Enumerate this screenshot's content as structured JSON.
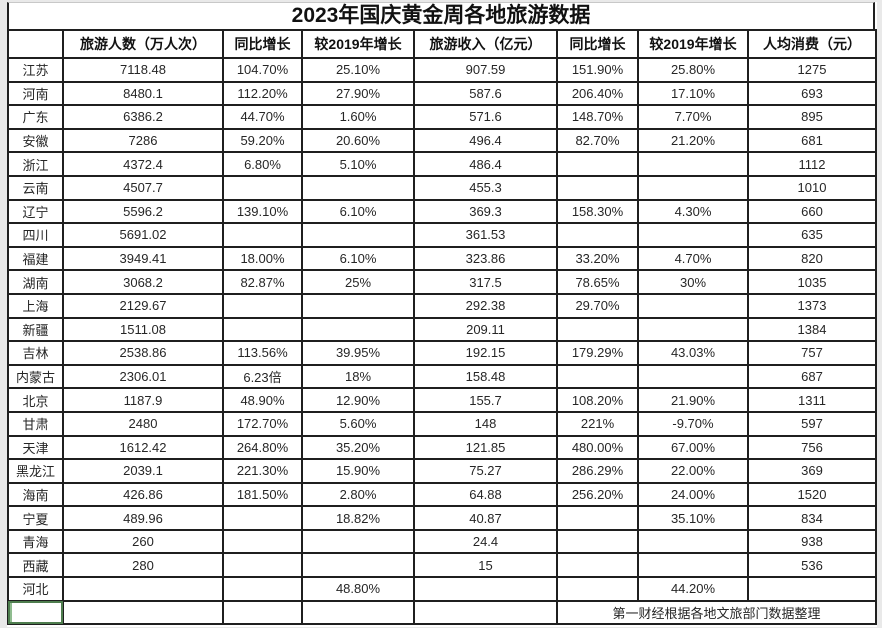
{
  "title": "2023年国庆黄金周各地旅游数据",
  "table": {
    "columns": [
      "",
      "旅游人数（万人次）",
      "同比增长",
      "较2019年增长",
      "旅游收入（亿元）",
      "同比增长",
      "较2019年增长",
      "人均消费（元）"
    ],
    "rows": [
      {
        "province": "江苏",
        "tourists": "7118.48",
        "tourists_yoy": "104.70%",
        "tourists_vs2019": "25.10%",
        "revenue": "907.59",
        "revenue_yoy": "151.90%",
        "revenue_vs2019": "25.80%",
        "per_capita": "1275"
      },
      {
        "province": "河南",
        "tourists": "8480.1",
        "tourists_yoy": "112.20%",
        "tourists_vs2019": "27.90%",
        "revenue": "587.6",
        "revenue_yoy": "206.40%",
        "revenue_vs2019": "17.10%",
        "per_capita": "693"
      },
      {
        "province": "广东",
        "tourists": "6386.2",
        "tourists_yoy": "44.70%",
        "tourists_vs2019": "1.60%",
        "revenue": "571.6",
        "revenue_yoy": "148.70%",
        "revenue_vs2019": "7.70%",
        "per_capita": "895"
      },
      {
        "province": "安徽",
        "tourists": "7286",
        "tourists_yoy": "59.20%",
        "tourists_vs2019": "20.60%",
        "revenue": "496.4",
        "revenue_yoy": "82.70%",
        "revenue_vs2019": "21.20%",
        "per_capita": "681"
      },
      {
        "province": "浙江",
        "tourists": "4372.4",
        "tourists_yoy": "6.80%",
        "tourists_vs2019": "5.10%",
        "revenue": "486.4",
        "revenue_yoy": "",
        "revenue_vs2019": "",
        "per_capita": "1112"
      },
      {
        "province": "云南",
        "tourists": "4507.7",
        "tourists_yoy": "",
        "tourists_vs2019": "",
        "revenue": "455.3",
        "revenue_yoy": "",
        "revenue_vs2019": "",
        "per_capita": "1010"
      },
      {
        "province": "辽宁",
        "tourists": "5596.2",
        "tourists_yoy": "139.10%",
        "tourists_vs2019": "6.10%",
        "revenue": "369.3",
        "revenue_yoy": "158.30%",
        "revenue_vs2019": "4.30%",
        "per_capita": "660"
      },
      {
        "province": "四川",
        "tourists": "5691.02",
        "tourists_yoy": "",
        "tourists_vs2019": "",
        "revenue": "361.53",
        "revenue_yoy": "",
        "revenue_vs2019": "",
        "per_capita": "635"
      },
      {
        "province": "福建",
        "tourists": "3949.41",
        "tourists_yoy": "18.00%",
        "tourists_vs2019": "6.10%",
        "revenue": "323.86",
        "revenue_yoy": "33.20%",
        "revenue_vs2019": "4.70%",
        "per_capita": "820"
      },
      {
        "province": "湖南",
        "tourists": "3068.2",
        "tourists_yoy": "82.87%",
        "tourists_vs2019": "25%",
        "revenue": "317.5",
        "revenue_yoy": "78.65%",
        "revenue_vs2019": "30%",
        "per_capita": "1035"
      },
      {
        "province": "上海",
        "tourists": "2129.67",
        "tourists_yoy": "",
        "tourists_vs2019": "",
        "revenue": "292.38",
        "revenue_yoy": "29.70%",
        "revenue_vs2019": "",
        "per_capita": "1373"
      },
      {
        "province": "新疆",
        "tourists": "1511.08",
        "tourists_yoy": "",
        "tourists_vs2019": "",
        "revenue": "209.11",
        "revenue_yoy": "",
        "revenue_vs2019": "",
        "per_capita": "1384"
      },
      {
        "province": "吉林",
        "tourists": "2538.86",
        "tourists_yoy": "113.56%",
        "tourists_vs2019": "39.95%",
        "revenue": "192.15",
        "revenue_yoy": "179.29%",
        "revenue_vs2019": "43.03%",
        "per_capita": "757"
      },
      {
        "province": "内蒙古",
        "tourists": "2306.01",
        "tourists_yoy": "6.23倍",
        "tourists_vs2019": "18%",
        "revenue": "158.48",
        "revenue_yoy": "",
        "revenue_vs2019": "",
        "per_capita": "687"
      },
      {
        "province": "北京",
        "tourists": "1187.9",
        "tourists_yoy": "48.90%",
        "tourists_vs2019": "12.90%",
        "revenue": "155.7",
        "revenue_yoy": "108.20%",
        "revenue_vs2019": "21.90%",
        "per_capita": "1311"
      },
      {
        "province": "甘肃",
        "tourists": "2480",
        "tourists_yoy": "172.70%",
        "tourists_vs2019": "5.60%",
        "revenue": "148",
        "revenue_yoy": "221%",
        "revenue_vs2019": "-9.70%",
        "per_capita": "597"
      },
      {
        "province": "天津",
        "tourists": "1612.42",
        "tourists_yoy": "264.80%",
        "tourists_vs2019": "35.20%",
        "revenue": "121.85",
        "revenue_yoy": "480.00%",
        "revenue_vs2019": "67.00%",
        "per_capita": "756"
      },
      {
        "province": "黑龙江",
        "tourists": "2039.1",
        "tourists_yoy": "221.30%",
        "tourists_vs2019": "15.90%",
        "revenue": "75.27",
        "revenue_yoy": "286.29%",
        "revenue_vs2019": "22.00%",
        "per_capita": "369"
      },
      {
        "province": "海南",
        "tourists": "426.86",
        "tourists_yoy": "181.50%",
        "tourists_vs2019": "2.80%",
        "revenue": "64.88",
        "revenue_yoy": "256.20%",
        "revenue_vs2019": "24.00%",
        "per_capita": "1520"
      },
      {
        "province": "宁夏",
        "tourists": "489.96",
        "tourists_yoy": "",
        "tourists_vs2019": "18.82%",
        "revenue": "40.87",
        "revenue_yoy": "",
        "revenue_vs2019": "35.10%",
        "per_capita": "834"
      },
      {
        "province": "青海",
        "tourists": "260",
        "tourists_yoy": "",
        "tourists_vs2019": "",
        "revenue": "24.4",
        "revenue_yoy": "",
        "revenue_vs2019": "",
        "per_capita": "938"
      },
      {
        "province": "西藏",
        "tourists": "280",
        "tourists_yoy": "",
        "tourists_vs2019": "",
        "revenue": "15",
        "revenue_yoy": "",
        "revenue_vs2019": "",
        "per_capita": "536"
      },
      {
        "province": "河北",
        "tourists": "",
        "tourists_yoy": "",
        "tourists_vs2019": "48.80%",
        "revenue": "",
        "revenue_yoy": "",
        "revenue_vs2019": "44.20%",
        "per_capita": ""
      }
    ],
    "footer_note": "第一财经根据各地文旅部门数据整理"
  },
  "colors": {
    "border": "#1f1f1f",
    "background": "#ffffff",
    "page_margin": "#e9e9e9",
    "selection_green": "#4e7d4e",
    "text": "#262626"
  }
}
